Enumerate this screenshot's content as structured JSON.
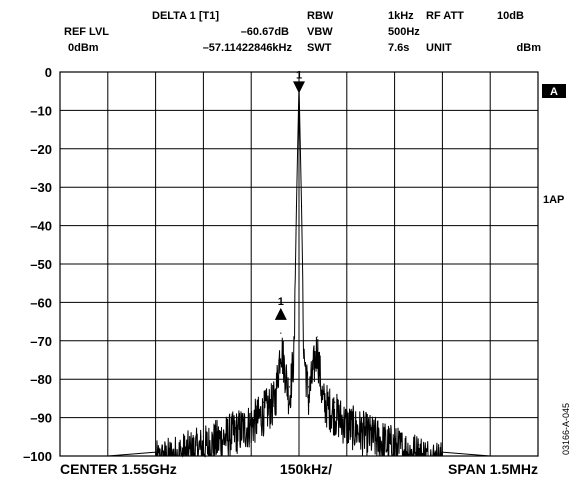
{
  "header": {
    "ref_lvl_label": "REF LVL",
    "ref_lvl_value": "0dBm",
    "marker_label": "DELTA 1 [T1]",
    "marker_level": "–60.67dB",
    "marker_freq": "–57.11422846kHz",
    "rbw_label": "RBW",
    "rbw_value": "1kHz",
    "vbw_label": "VBW",
    "vbw_value": "500Hz",
    "swt_label": "SWT",
    "swt_value": "7.6s",
    "rf_att_label": "RF ATT",
    "rf_att_value": "10dB",
    "unit_label": "UNIT",
    "unit_value": "dBm"
  },
  "side": {
    "trace_badge": "A",
    "detector": "1AP",
    "figure_code": "03166-A-045"
  },
  "markers": [
    {
      "label": "1",
      "kind": "reference",
      "x_offset_khz": 0,
      "level_dbm": -4
    },
    {
      "label": "1",
      "kind": "delta",
      "x_offset_khz": -57.1,
      "level_dbm": -63
    }
  ],
  "chart_data": {
    "type": "line",
    "center_freq": "1.55GHz",
    "span": "1.5MHz",
    "x_per_div": "150kHz/",
    "x_labels": {
      "left": "CENTER 1.55GHz",
      "middle": "150kHz/",
      "right": "SPAN 1.5MHz"
    },
    "x_range_khz": [
      -750,
      750
    ],
    "ylim": [
      -100,
      0
    ],
    "y_ticks": [
      0,
      -10,
      -20,
      -30,
      -40,
      -50,
      -60,
      -70,
      -80,
      -90,
      -100
    ],
    "y_tick_labels": [
      "0",
      "–10",
      "–20",
      "–30",
      "–40",
      "–50",
      "–60",
      "–70",
      "–80",
      "–90",
      "–100"
    ],
    "grid": true,
    "grid_divisions": {
      "x": 10,
      "y": 10
    },
    "series": [
      {
        "x": [
          -750,
          -600,
          -450,
          -375,
          -300,
          -225,
          -150,
          -112,
          -75,
          -57,
          -30,
          -15,
          -8,
          0,
          8,
          15,
          30,
          57,
          75,
          112,
          150,
          225,
          300,
          375,
          450,
          600,
          750
        ],
        "values": [
          -100,
          -100,
          -99,
          -97,
          -95,
          -92,
          -89,
          -86,
          -83,
          -68,
          -82,
          -70,
          -35,
          -3,
          -35,
          -70,
          -82,
          -69,
          -83,
          -86,
          -89,
          -92,
          -95,
          -97,
          -99,
          -100,
          -100
        ]
      }
    ]
  }
}
